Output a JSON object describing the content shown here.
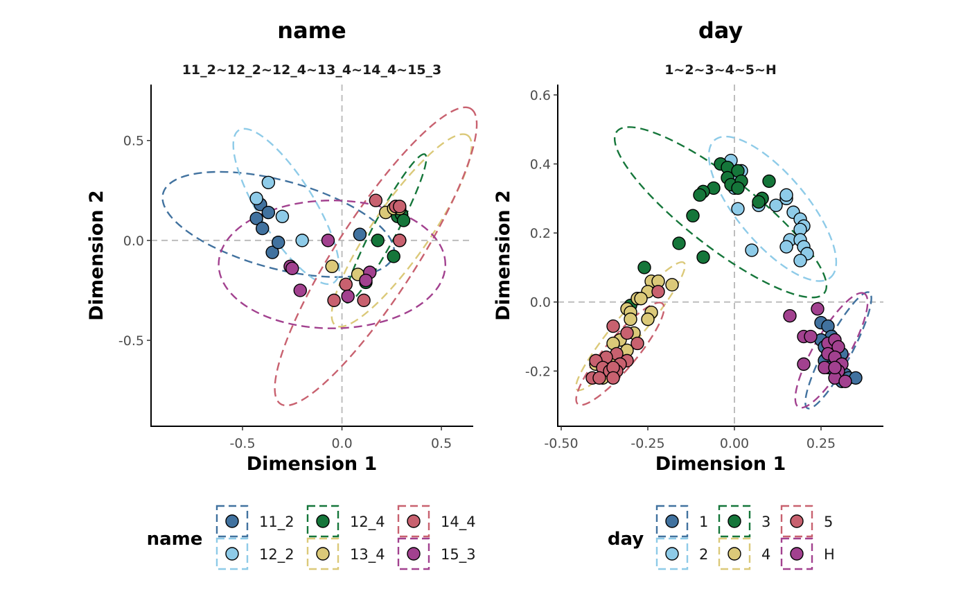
{
  "colors": {
    "11_2": "#41729f",
    "12_2": "#8ecbe8",
    "12_4": "#15763a",
    "13_4": "#dbc979",
    "14_4": "#c8616f",
    "15_3": "#a2418f",
    "1": "#41729f",
    "2": "#8ecbe8",
    "3": "#15763a",
    "4": "#dbc979",
    "5": "#c8616f",
    "H": "#a2418f",
    "axis": "#000000",
    "refline": "#bdbdbd",
    "tick_text": "#4d4d4d"
  },
  "chart_data": [
    {
      "type": "scatter",
      "title": "name",
      "subtitle": "11_2~12_2~12_4~13_4~14_4~15_3",
      "xlabel": "Dimension 1",
      "ylabel": "Dimension 2",
      "xlim": [
        -0.96,
        0.66
      ],
      "ylim": [
        -0.93,
        0.78
      ],
      "xticks": [
        {
          "v": -0.5,
          "label": "-0.5"
        },
        {
          "v": 0,
          "label": "0.0"
        },
        {
          "v": 0.5,
          "label": "0.5"
        }
      ],
      "yticks": [
        {
          "v": -0.5,
          "label": "-0.5"
        },
        {
          "v": 0,
          "label": "0.0"
        },
        {
          "v": 0.5,
          "label": "0.5"
        }
      ],
      "reference_lines": {
        "x": 0,
        "y": 0
      },
      "legend": {
        "title": "name",
        "position": "bottom",
        "entries": [
          "11_2",
          "12_2",
          "12_4",
          "13_4",
          "14_4",
          "15_3"
        ]
      },
      "series": [
        {
          "name": "11_2",
          "points": [
            [
              -0.43,
              0.11
            ],
            [
              -0.41,
              0.18
            ],
            [
              -0.4,
              0.06
            ],
            [
              -0.37,
              0.14
            ],
            [
              -0.35,
              -0.06
            ],
            [
              -0.32,
              -0.01
            ],
            [
              0.09,
              0.03
            ]
          ],
          "ellipse": {
            "cx": -0.32,
            "cy": 0.08,
            "rx": 0.6,
            "ry": 0.22,
            "angle": -15
          }
        },
        {
          "name": "12_2",
          "points": [
            [
              -0.43,
              0.21
            ],
            [
              -0.37,
              0.29
            ],
            [
              -0.3,
              0.12
            ],
            [
              -0.2,
              0.0
            ]
          ],
          "ellipse": {
            "cx": -0.28,
            "cy": 0.17,
            "rx": 0.45,
            "ry": 0.14,
            "angle": -58
          }
        },
        {
          "name": "12_4",
          "points": [
            [
              0.26,
              0.15
            ],
            [
              0.28,
              0.12
            ],
            [
              0.3,
              0.13
            ],
            [
              0.31,
              0.1
            ],
            [
              0.18,
              0.0
            ],
            [
              0.26,
              -0.08
            ],
            [
              0.12,
              -0.21
            ]
          ],
          "ellipse": {
            "cx": 0.22,
            "cy": 0.06,
            "rx": 0.42,
            "ry": 0.06,
            "angle": 62
          }
        },
        {
          "name": "13_4",
          "points": [
            [
              0.22,
              0.14
            ],
            [
              0.26,
              0.16
            ],
            [
              0.29,
              0.16
            ],
            [
              0.29,
              0.0
            ],
            [
              0.08,
              -0.17
            ],
            [
              -0.05,
              -0.13
            ]
          ],
          "ellipse": {
            "cx": 0.3,
            "cy": 0.05,
            "rx": 0.58,
            "ry": 0.14,
            "angle": 55
          }
        },
        {
          "name": "14_4",
          "points": [
            [
              0.17,
              0.2
            ],
            [
              0.27,
              0.17
            ],
            [
              0.29,
              0.17
            ],
            [
              0.29,
              0.0
            ],
            [
              0.02,
              -0.22
            ],
            [
              -0.04,
              -0.3
            ],
            [
              0.11,
              -0.3
            ]
          ],
          "ellipse": {
            "cx": 0.17,
            "cy": -0.08,
            "rx": 0.88,
            "ry": 0.2,
            "angle": 57
          }
        },
        {
          "name": "15_3",
          "points": [
            [
              -0.07,
              0.0
            ],
            [
              -0.26,
              -0.13
            ],
            [
              -0.25,
              -0.14
            ],
            [
              -0.21,
              -0.25
            ],
            [
              0.03,
              -0.28
            ],
            [
              0.14,
              -0.16
            ],
            [
              0.12,
              -0.2
            ]
          ],
          "ellipse": {
            "cx": -0.05,
            "cy": -0.12,
            "rx": 0.57,
            "ry": 0.32,
            "angle": 0
          }
        }
      ]
    },
    {
      "type": "scatter",
      "title": "day",
      "subtitle": "1~2~3~4~5~H",
      "xlabel": "Dimension 1",
      "ylabel": "Dimension 2",
      "xlim": [
        -0.51,
        0.43
      ],
      "ylim": [
        -0.36,
        0.63
      ],
      "xticks": [
        {
          "v": -0.5,
          "label": "-0.50"
        },
        {
          "v": -0.25,
          "label": "-0.25"
        },
        {
          "v": 0,
          "label": "0.00"
        },
        {
          "v": 0.25,
          "label": "0.25"
        }
      ],
      "yticks": [
        {
          "v": -0.2,
          "label": "-0.2"
        },
        {
          "v": 0,
          "label": "0.0"
        },
        {
          "v": 0.2,
          "label": "0.2"
        },
        {
          "v": 0.4,
          "label": "0.4"
        },
        {
          "v": 0.6,
          "label": "0.6"
        }
      ],
      "reference_lines": {
        "x": 0,
        "y": 0
      },
      "legend": {
        "title": "day",
        "position": "bottom",
        "entries": [
          "1",
          "2",
          "3",
          "4",
          "5",
          "H"
        ]
      },
      "series": [
        {
          "name": "1",
          "points": [
            [
              0.25,
              -0.06
            ],
            [
              0.27,
              -0.07
            ],
            [
              0.28,
              -0.1
            ],
            [
              0.25,
              -0.11
            ],
            [
              0.26,
              -0.13
            ],
            [
              0.29,
              -0.14
            ],
            [
              0.31,
              -0.15
            ],
            [
              0.26,
              -0.17
            ],
            [
              0.3,
              -0.18
            ],
            [
              0.27,
              -0.19
            ],
            [
              0.29,
              -0.2
            ],
            [
              0.32,
              -0.21
            ],
            [
              0.33,
              -0.22
            ],
            [
              0.35,
              -0.22
            ],
            [
              0.3,
              -0.22
            ],
            [
              0.31,
              -0.23
            ]
          ],
          "ellipse": {
            "cx": 0.3,
            "cy": -0.14,
            "rx": 0.19,
            "ry": 0.038,
            "angle": 62
          }
        },
        {
          "name": "2",
          "points": [
            [
              -0.01,
              0.41
            ],
            [
              0.02,
              0.38
            ],
            [
              0.0,
              0.37
            ],
            [
              0.0,
              0.33
            ],
            [
              0.07,
              0.28
            ],
            [
              0.08,
              0.3
            ],
            [
              0.12,
              0.28
            ],
            [
              0.15,
              0.3
            ],
            [
              0.15,
              0.31
            ],
            [
              0.17,
              0.26
            ],
            [
              0.19,
              0.24
            ],
            [
              0.2,
              0.22
            ],
            [
              0.19,
              0.21
            ],
            [
              0.16,
              0.18
            ],
            [
              0.19,
              0.18
            ],
            [
              0.15,
              0.16
            ],
            [
              0.2,
              0.16
            ],
            [
              0.21,
              0.14
            ],
            [
              0.19,
              0.12
            ],
            [
              0.01,
              0.27
            ],
            [
              0.05,
              0.15
            ]
          ],
          "ellipse": {
            "cx": 0.11,
            "cy": 0.27,
            "rx": 0.26,
            "ry": 0.1,
            "angle": -50
          }
        },
        {
          "name": "3",
          "points": [
            [
              -0.04,
              0.4
            ],
            [
              -0.02,
              0.39
            ],
            [
              0.01,
              0.38
            ],
            [
              -0.02,
              0.36
            ],
            [
              -0.01,
              0.34
            ],
            [
              0.02,
              0.35
            ],
            [
              -0.06,
              0.33
            ],
            [
              -0.09,
              0.32
            ],
            [
              -0.1,
              0.31
            ],
            [
              0.01,
              0.33
            ],
            [
              0.1,
              0.35
            ],
            [
              0.08,
              0.3
            ],
            [
              0.07,
              0.29
            ],
            [
              -0.12,
              0.25
            ],
            [
              -0.16,
              0.17
            ],
            [
              -0.09,
              0.13
            ],
            [
              -0.26,
              0.1
            ],
            [
              -0.3,
              -0.01
            ]
          ],
          "ellipse": {
            "cx": -0.04,
            "cy": 0.26,
            "rx": 0.38,
            "ry": 0.1,
            "angle": -38
          }
        },
        {
          "name": "4",
          "points": [
            [
              -0.24,
              0.06
            ],
            [
              -0.22,
              0.06
            ],
            [
              -0.18,
              0.05
            ],
            [
              -0.25,
              0.03
            ],
            [
              -0.28,
              0.01
            ],
            [
              -0.27,
              0.01
            ],
            [
              -0.31,
              -0.02
            ],
            [
              -0.3,
              -0.03
            ],
            [
              -0.24,
              -0.03
            ],
            [
              -0.25,
              -0.05
            ],
            [
              -0.3,
              -0.05
            ],
            [
              -0.29,
              -0.09
            ],
            [
              -0.33,
              -0.11
            ],
            [
              -0.35,
              -0.12
            ],
            [
              -0.31,
              -0.14
            ],
            [
              -0.36,
              -0.17
            ],
            [
              -0.4,
              -0.18
            ],
            [
              -0.38,
              -0.22
            ]
          ],
          "ellipse": {
            "cx": -0.3,
            "cy": -0.07,
            "rx": 0.24,
            "ry": 0.04,
            "angle": 50
          }
        },
        {
          "name": "5",
          "points": [
            [
              -0.22,
              0.03
            ],
            [
              -0.35,
              -0.07
            ],
            [
              -0.31,
              -0.09
            ],
            [
              -0.28,
              -0.12
            ],
            [
              -0.34,
              -0.15
            ],
            [
              -0.37,
              -0.16
            ],
            [
              -0.31,
              -0.17
            ],
            [
              -0.4,
              -0.17
            ],
            [
              -0.33,
              -0.18
            ],
            [
              -0.38,
              -0.19
            ],
            [
              -0.36,
              -0.2
            ],
            [
              -0.34,
              -0.2
            ],
            [
              -0.35,
              -0.19
            ],
            [
              -0.41,
              -0.22
            ],
            [
              -0.39,
              -0.22
            ],
            [
              -0.35,
              -0.22
            ]
          ],
          "ellipse": {
            "cx": -0.33,
            "cy": -0.15,
            "rx": 0.19,
            "ry": 0.045,
            "angle": 50
          }
        },
        {
          "name": "H",
          "points": [
            [
              0.24,
              -0.02
            ],
            [
              0.16,
              -0.04
            ],
            [
              0.2,
              -0.1
            ],
            [
              0.22,
              -0.1
            ],
            [
              0.27,
              -0.12
            ],
            [
              0.29,
              -0.11
            ],
            [
              0.3,
              -0.13
            ],
            [
              0.27,
              -0.15
            ],
            [
              0.29,
              -0.16
            ],
            [
              0.31,
              -0.18
            ],
            [
              0.26,
              -0.19
            ],
            [
              0.3,
              -0.2
            ],
            [
              0.2,
              -0.18
            ],
            [
              0.29,
              -0.22
            ],
            [
              0.32,
              -0.23
            ],
            [
              0.29,
              -0.19
            ]
          ],
          "ellipse": {
            "cx": 0.28,
            "cy": -0.14,
            "rx": 0.19,
            "ry": 0.05,
            "angle": 60
          }
        }
      ]
    }
  ]
}
